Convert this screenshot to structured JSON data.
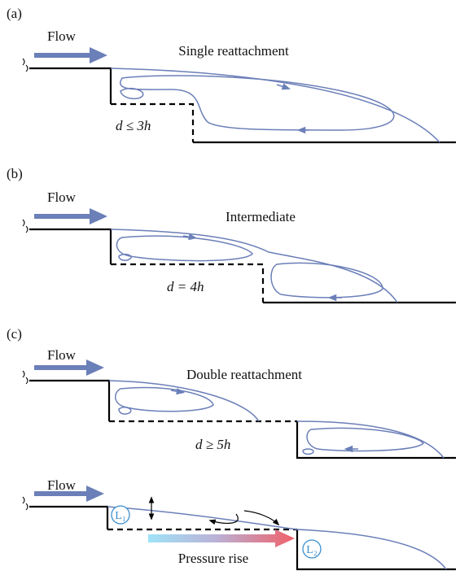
{
  "panels": [
    {
      "label": "(a)",
      "flow": "Flow",
      "title": "Single reattachment",
      "spacing": "d ≤ 3h"
    },
    {
      "label": "(b)",
      "flow": "Flow",
      "title": "Intermediate",
      "spacing": "d = 4h"
    },
    {
      "label": "(c)",
      "flow": "Flow",
      "title": "Double reattachment",
      "spacing": "d ≥ 5h"
    }
  ],
  "sketch": {
    "flow": "Flow",
    "first_bubble": "L₁",
    "second_bubble": "L₂",
    "pressure": "Pressure rise"
  }
}
